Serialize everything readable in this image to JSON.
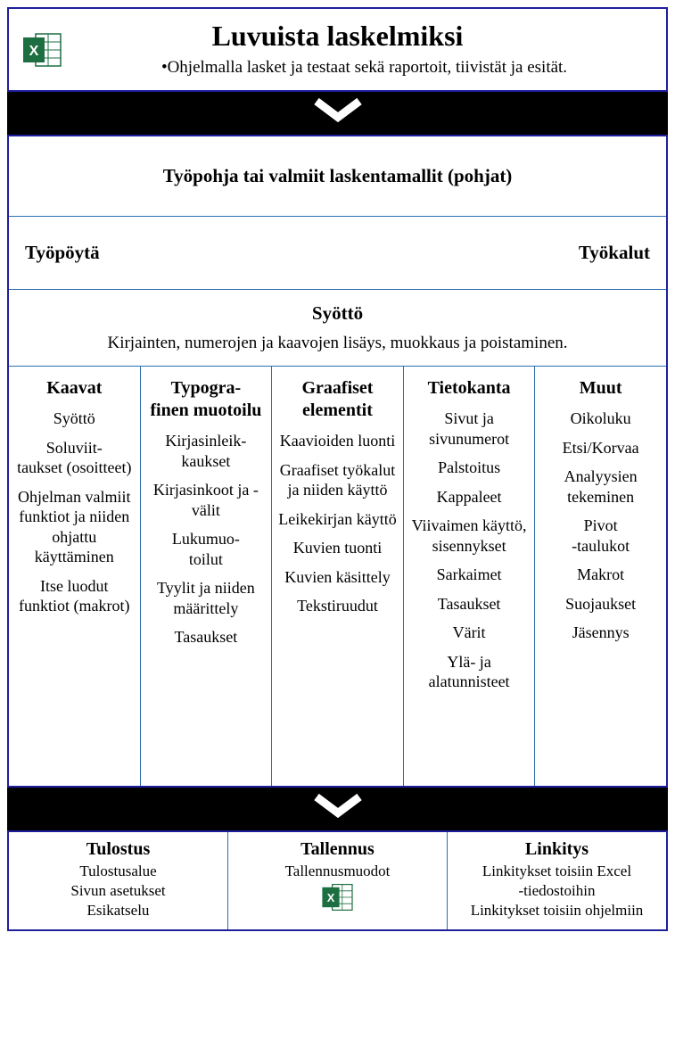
{
  "colors": {
    "border_main": "#1f1f9e",
    "border_inner": "#2a6fb0",
    "excel_green": "#1d6f42",
    "excel_light": "#d7f0e0",
    "background": "#ffffff",
    "text": "#000000"
  },
  "title": {
    "heading": "Luvuista laskelmiksi",
    "subtitle": "•Ohjelmalla lasket ja testaat sekä raportoit, tiivistät ja esität."
  },
  "main": {
    "row1": "Työpohja tai valmiit laskentamallit (pohjat)",
    "row2_left": "Työpöytä",
    "row2_right": "Työkalut",
    "row3_title": "Syöttö",
    "row3_sub": "Kirjainten, numerojen ja kaavojen lisäys, muokkaus ja poistaminen.",
    "columns": [
      {
        "title": "Kaavat",
        "items": [
          "Syöttö",
          "Soluviit-\ntaukset (osoitteet)",
          "Ohjelman valmiit funktiot ja niiden ohjattu käyttäminen",
          "Itse luodut funktiot (makrot)"
        ]
      },
      {
        "title": "Typogra-\nfinen muotoilu",
        "items": [
          "Kirjasinleik-\nkaukset",
          "Kirjasinkoot ja -välit",
          "Lukumuo-\ntoilut",
          "Tyylit ja niiden määrittely",
          "Tasaukset"
        ]
      },
      {
        "title": "Graafiset elementit",
        "items": [
          "Kaavioiden luonti",
          "Graafiset työkalut ja niiden käyttö",
          "Leikekirjan käyttö",
          "Kuvien tuonti",
          "Kuvien käsittely",
          "Tekstiruudut"
        ]
      },
      {
        "title": "Tietokanta",
        "items": [
          "Sivut ja sivunumerot",
          "Palstoitus",
          "Kappaleet",
          "Viivaimen käyttö, sisennykset",
          "Sarkaimet",
          "Tasaukset",
          "Värit",
          "Ylä- ja alatunnisteet"
        ]
      },
      {
        "title": "Muut",
        "items": [
          "Oikoluku",
          "Etsi/Korvaa",
          "Analyysien tekeminen",
          "Pivot\n-taulukot",
          "Makrot",
          "Suojaukset",
          "Jäsennys"
        ]
      }
    ]
  },
  "bottom": [
    {
      "title": "Tulostus",
      "items": [
        "Tulostusalue",
        "Sivun asetukset",
        "Esikatselu"
      ],
      "icon": false
    },
    {
      "title": "Tallennus",
      "items": [
        "Tallennusmuodot"
      ],
      "icon": true
    },
    {
      "title": "Linkitys",
      "items": [
        "Linkitykset toisiin Excel\n-tiedostoihin",
        "Linkitykset toisiin ohjelmiin"
      ],
      "icon": false
    }
  ]
}
